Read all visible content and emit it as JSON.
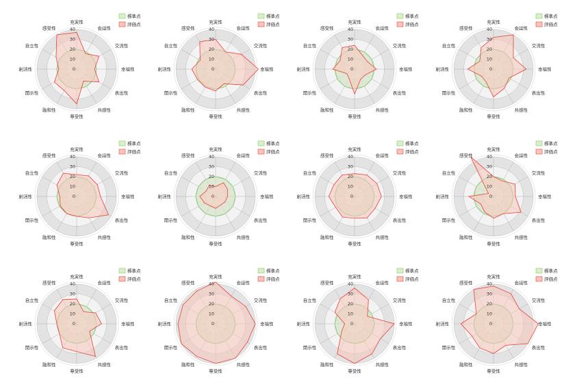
{
  "colors": {
    "standard_fill": "#dcedc8",
    "standard_stroke": "#7fcf6a",
    "eval_fill": "#f7c6bb",
    "eval_stroke": "#e8413a",
    "ring_light": "#f3f3f3",
    "ring_dark": "#e3e3e3",
    "grid_line": "#b0b0b0"
  },
  "chart_data": [
    {
      "type": "radar",
      "axes": [
        "充実性",
        "会話性",
        "交流性",
        "幸福性",
        "表出性",
        "共感性",
        "尊受性",
        "融和性",
        "開示性",
        "創活性",
        "自立性",
        "感受性"
      ],
      "ticks": [
        0,
        10,
        20,
        30,
        40
      ],
      "rmax": 40,
      "legend": [
        "標準点",
        "評価点"
      ],
      "series": [
        {
          "name": "標準点",
          "values": [
            20,
            20,
            20,
            20,
            20,
            20,
            20,
            20,
            20,
            20,
            20,
            20
          ]
        },
        {
          "name": "評価点",
          "values": [
            37,
            18,
            26,
            18,
            26,
            14,
            35,
            25,
            26,
            18,
            24,
            40
          ]
        }
      ]
    },
    {
      "type": "radar",
      "axes": [
        "充実性",
        "会話性",
        "交流性",
        "幸福性",
        "表出性",
        "共感性",
        "尊受性",
        "融和性",
        "開示性",
        "創活性",
        "自立性",
        "感受性"
      ],
      "ticks": [
        0,
        10,
        20,
        30,
        40
      ],
      "rmax": 40,
      "legend": [
        "標準点",
        "評価点"
      ],
      "series": [
        {
          "name": "標準点",
          "values": [
            20,
            20,
            20,
            20,
            20,
            20,
            20,
            20,
            20,
            20,
            20,
            20
          ]
        },
        {
          "name": "評価点",
          "values": [
            30,
            20,
            30,
            43,
            32,
            17,
            22,
            21,
            21,
            24,
            18,
            32
          ]
        }
      ]
    },
    {
      "type": "radar",
      "axes": [
        "充実性",
        "会話性",
        "交流性",
        "幸福性",
        "表出性",
        "共感性",
        "尊受性",
        "融和性",
        "開示性",
        "創活性",
        "自立性",
        "感受性"
      ],
      "ticks": [
        0,
        10,
        20,
        30,
        40
      ],
      "rmax": 40,
      "legend": [
        "標準点",
        "評価点"
      ],
      "series": [
        {
          "name": "標準点",
          "values": [
            20,
            20,
            20,
            20,
            20,
            20,
            20,
            20,
            20,
            20,
            20,
            20
          ]
        },
        {
          "name": "評価点",
          "values": [
            24,
            16,
            15,
            22,
            12,
            12,
            25,
            11,
            9,
            22,
            17,
            25
          ]
        }
      ]
    },
    {
      "type": "radar",
      "axes": [
        "充実性",
        "会話性",
        "交流性",
        "幸福性",
        "表出性",
        "共感性",
        "尊受性",
        "融和性",
        "開示性",
        "創活性",
        "自立性",
        "感受性"
      ],
      "ticks": [
        0,
        10,
        20,
        30,
        40
      ],
      "rmax": 40,
      "legend": [
        "標準点",
        "評価点"
      ],
      "series": [
        {
          "name": "標準点",
          "values": [
            20,
            20,
            20,
            20,
            20,
            20,
            20,
            20,
            20,
            20,
            20,
            20
          ]
        },
        {
          "name": "評価点",
          "values": [
            32,
            40,
            23,
            33,
            18,
            22,
            28,
            15,
            14,
            26,
            16,
            25
          ]
        }
      ]
    },
    {
      "type": "radar",
      "axes": [
        "充実性",
        "会話性",
        "交流性",
        "幸福性",
        "表出性",
        "共感性",
        "尊受性",
        "融和性",
        "開示性",
        "創活性",
        "自立性",
        "感受性"
      ],
      "ticks": [
        0,
        10,
        20,
        30,
        40
      ],
      "rmax": 40,
      "legend": [
        "標準点",
        "評価点"
      ],
      "series": [
        {
          "name": "標準点",
          "values": [
            20,
            20,
            20,
            20,
            20,
            20,
            20,
            20,
            20,
            20,
            20,
            20
          ]
        },
        {
          "name": "評価点",
          "values": [
            22,
            24,
            24,
            24,
            37,
            25,
            20,
            20,
            19,
            17,
            23,
            27
          ]
        }
      ]
    },
    {
      "type": "radar",
      "axes": [
        "充実性",
        "会話性",
        "交流性",
        "幸福性",
        "表出性",
        "共感性",
        "尊受性",
        "融和性",
        "開示性",
        "創活性",
        "自立性",
        "感受性"
      ],
      "ticks": [
        0,
        10,
        20,
        30,
        40
      ],
      "rmax": 40,
      "legend": [
        "標準点",
        "評価点"
      ],
      "series": [
        {
          "name": "標準点",
          "values": [
            20,
            20,
            20,
            20,
            20,
            20,
            20,
            20,
            20,
            20,
            20,
            20
          ]
        },
        {
          "name": "評価点",
          "values": [
            10,
            16,
            14,
            12,
            11,
            10,
            12,
            11,
            13,
            16,
            11,
            13
          ]
        }
      ]
    },
    {
      "type": "radar",
      "axes": [
        "充実性",
        "会話性",
        "交流性",
        "幸福性",
        "表出性",
        "共感性",
        "尊受性",
        "融和性",
        "開示性",
        "創活性",
        "自立性",
        "感受性"
      ],
      "ticks": [
        0,
        10,
        20,
        30,
        40
      ],
      "rmax": 40,
      "legend": [
        "標準点",
        "評価点"
      ],
      "series": [
        {
          "name": "標準点",
          "values": [
            20,
            20,
            20,
            20,
            20,
            20,
            20,
            20,
            20,
            20,
            20,
            20
          ]
        },
        {
          "name": "評価点",
          "values": [
            23,
            25,
            26,
            27,
            24,
            25,
            22,
            24,
            22,
            26,
            24,
            25
          ]
        }
      ]
    },
    {
      "type": "radar",
      "axes": [
        "充実性",
        "会話性",
        "交流性",
        "幸福性",
        "表出性",
        "共感性",
        "尊受性",
        "融和性",
        "開示性",
        "創活性",
        "自立性",
        "感受性"
      ],
      "ticks": [
        0,
        10,
        20,
        30,
        40
      ],
      "rmax": 40,
      "legend": [
        "標準点",
        "評価点"
      ],
      "series": [
        {
          "name": "標準点",
          "values": [
            20,
            20,
            20,
            20,
            20,
            20,
            20,
            20,
            20,
            20,
            20,
            20
          ]
        },
        {
          "name": "評価点",
          "values": [
            20,
            18,
            25,
            22,
            32,
            20,
            22,
            18,
            15,
            25,
            6,
            46
          ]
        }
      ]
    },
    {
      "type": "radar",
      "axes": [
        "充実性",
        "会話性",
        "交流性",
        "幸福性",
        "表出性",
        "共感性",
        "尊受性",
        "融和性",
        "開示性",
        "創活性",
        "自立性",
        "感受性"
      ],
      "ticks": [
        0,
        10,
        20,
        30,
        40
      ],
      "rmax": 40,
      "legend": [
        "標準点",
        "評価点"
      ],
      "series": [
        {
          "name": "標準点",
          "values": [
            20,
            20,
            20,
            20,
            20,
            20,
            20,
            20,
            20,
            20,
            20,
            20
          ]
        },
        {
          "name": "評価点",
          "values": [
            25,
            14,
            22,
            25,
            15,
            38,
            28,
            28,
            20,
            20,
            26,
            28
          ]
        }
      ]
    },
    {
      "type": "radar",
      "axes": [
        "充実性",
        "会話性",
        "交流性",
        "幸福性",
        "表出性",
        "共感性",
        "尊受性",
        "融和性",
        "開示性",
        "創活性",
        "自立性",
        "感受性"
      ],
      "ticks": [
        0,
        10,
        20,
        30,
        40
      ],
      "rmax": 40,
      "legend": [
        "標準点",
        "評価点"
      ],
      "series": [
        {
          "name": "標準点",
          "values": [
            20,
            20,
            20,
            20,
            20,
            20,
            20,
            20,
            20,
            20,
            20,
            20
          ]
        },
        {
          "name": "評価点",
          "values": [
            42,
            32,
            35,
            40,
            37,
            40,
            40,
            38,
            40,
            38,
            38,
            38
          ]
        }
      ]
    },
    {
      "type": "radar",
      "axes": [
        "充実性",
        "会話性",
        "交流性",
        "幸福性",
        "表出性",
        "共感性",
        "尊受性",
        "融和性",
        "開示性",
        "創活性",
        "自立性",
        "感受性"
      ],
      "ticks": [
        0,
        10,
        20,
        30,
        40
      ],
      "rmax": 40,
      "legend": [
        "標準点",
        "評価点"
      ],
      "series": [
        {
          "name": "標準点",
          "values": [
            20,
            20,
            20,
            20,
            20,
            20,
            20,
            20,
            20,
            20,
            20,
            20
          ]
        },
        {
          "name": "評価点",
          "values": [
            36,
            28,
            15,
            40,
            30,
            35,
            40,
            35,
            15,
            10,
            23,
            29
          ]
        }
      ]
    },
    {
      "type": "radar",
      "axes": [
        "充実性",
        "会話性",
        "交流性",
        "幸福性",
        "表出性",
        "共感性",
        "尊受性",
        "融和性",
        "開示性",
        "創活性",
        "自立性",
        "感受性"
      ],
      "ticks": [
        0,
        10,
        20,
        30,
        40
      ],
      "rmax": 40,
      "legend": [
        "標準点",
        "評価点"
      ],
      "series": [
        {
          "name": "標準点",
          "values": [
            20,
            20,
            20,
            20,
            20,
            20,
            20,
            20,
            20,
            20,
            20,
            20
          ]
        },
        {
          "name": "評価点",
          "values": [
            38,
            35,
            30,
            45,
            40,
            25,
            30,
            28,
            25,
            33,
            20,
            40
          ]
        }
      ]
    }
  ]
}
